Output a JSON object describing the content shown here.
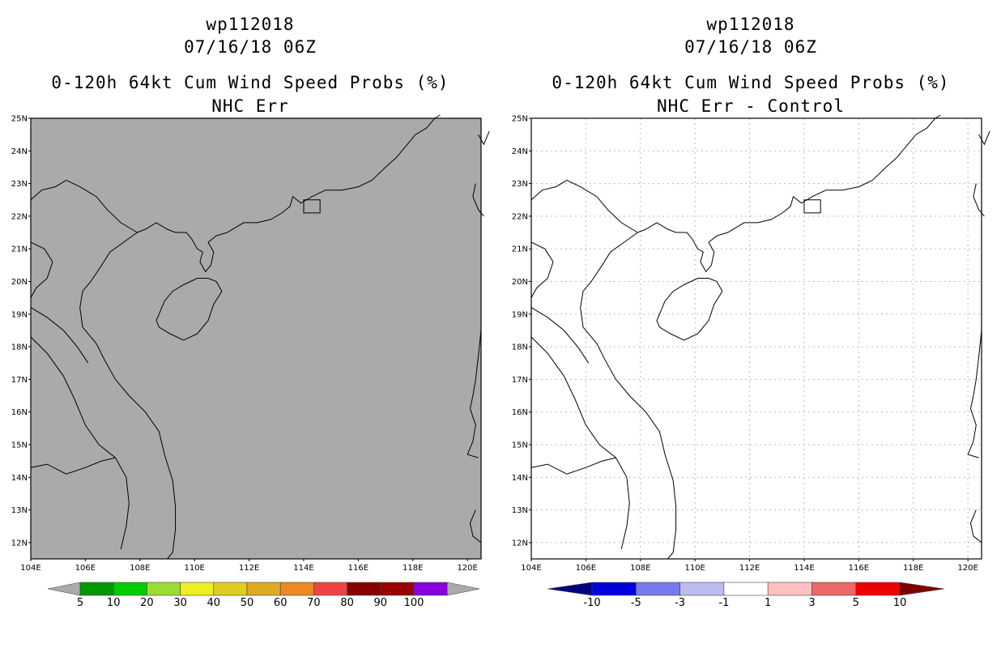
{
  "panels": [
    {
      "id": "nhc_err",
      "title_lines": [
        "wp112018",
        "07/16/18 06Z",
        "0-120h 64kt Cum Wind Speed Probs (%)",
        "NHC Err"
      ],
      "background": "#aaaaaa",
      "grid": false,
      "colorbar": {
        "labels": [
          "5",
          "10",
          "20",
          "30",
          "40",
          "50",
          "60",
          "70",
          "80",
          "90",
          "100"
        ],
        "colors": [
          "#009900",
          "#00cc00",
          "#99dd33",
          "#eeee22",
          "#ddcc22",
          "#ddaa22",
          "#ee8822",
          "#ee4444",
          "#880000",
          "#990000",
          "#8800dd"
        ],
        "end_colors": [
          "#aaaaaa",
          "#aaaaaa"
        ]
      }
    },
    {
      "id": "nhc_err_minus_control",
      "title_lines": [
        "wp112018",
        "07/16/18 06Z",
        "0-120h 64kt Cum Wind Speed Probs (%)",
        "NHC Err - Control"
      ],
      "background": "#ffffff",
      "grid": true,
      "colorbar": {
        "labels": [
          "-10",
          "-5",
          "-3",
          "-1",
          "1",
          "3",
          "5",
          "10"
        ],
        "colors": [
          "#0000dd",
          "#7777ee",
          "#bbbbee",
          "#ffffff",
          "#ffc0c0",
          "#ee6666",
          "#ee0000"
        ],
        "end_colors": [
          "#000080",
          "#800000"
        ]
      }
    }
  ],
  "map": {
    "lon_range": [
      104,
      120.5
    ],
    "lat_range": [
      11.5,
      25
    ],
    "x_ticks": [
      "104E",
      "106E",
      "108E",
      "110E",
      "112E",
      "114E",
      "116E",
      "118E",
      "120E"
    ],
    "y_ticks": [
      "12N",
      "13N",
      "14N",
      "15N",
      "16N",
      "17N",
      "18N",
      "19N",
      "20N",
      "21N",
      "22N",
      "23N",
      "24N",
      "25N"
    ],
    "coastline_color": "#000000"
  }
}
